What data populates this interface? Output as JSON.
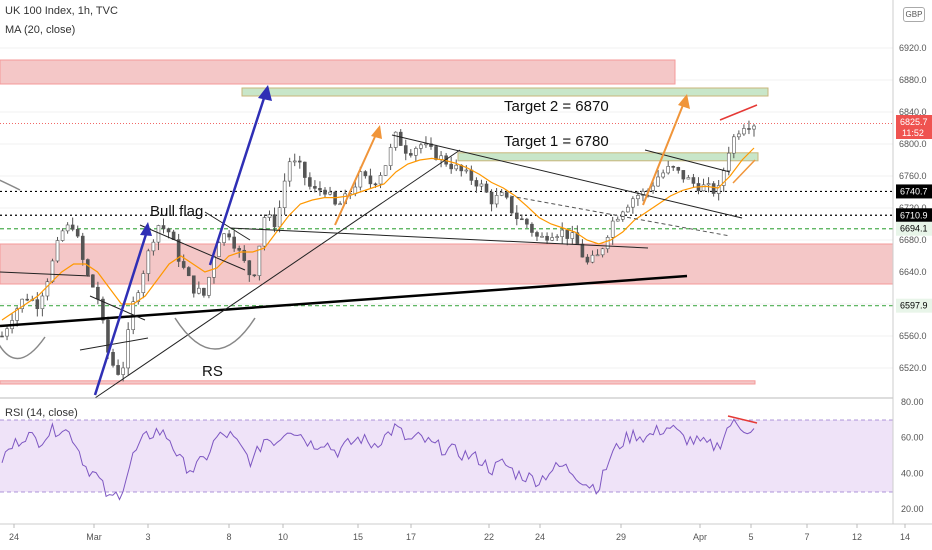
{
  "header": {
    "title": "UK 100 Index, 1h, TVC",
    "ma_label": "MA (20, close)",
    "rsi_label": "RSI (14, close)",
    "currency": "GBP",
    "last_price": "6825.7",
    "countdown": "11:52"
  },
  "annotations": {
    "bull_flag": "Bull flag",
    "rs": "RS",
    "target1": "Target 1 = 6780",
    "target2": "Target 2 = 6870"
  },
  "price_axis": {
    "ticks": [
      "6920.0",
      "6880.0",
      "6840.0",
      "6800.0",
      "6760.0",
      "6720.0",
      "6680.0",
      "6640.0",
      "6600.0",
      "6560.0",
      "6520.0"
    ],
    "levels": [
      {
        "label": "6740.7",
        "value": 6740.7,
        "style": "dotted",
        "color": "#000000"
      },
      {
        "label": "6710.9",
        "value": 6710.9,
        "style": "dotted",
        "color": "#000000"
      },
      {
        "label": "6694.1",
        "value": 6694.1,
        "style": "dashed",
        "color": "#4caf50"
      },
      {
        "label": "6597.9",
        "value": 6597.9,
        "style": "dashed",
        "color": "#4caf50"
      }
    ]
  },
  "rsi_axis": {
    "ticks": [
      "80.00",
      "60.00",
      "40.00",
      "20.00"
    ]
  },
  "time_axis": {
    "labels": [
      "24",
      "Mar",
      "3",
      "8",
      "10",
      "15",
      "17",
      "22",
      "24",
      "29",
      "Apr",
      "5",
      "7",
      "12",
      "14"
    ]
  },
  "chart_data": {
    "type": "candlestick",
    "symbol": "UK 100 Index",
    "interval": "1h",
    "y_range": [
      6500,
      6950
    ],
    "rsi_range": [
      15,
      82
    ],
    "close_path": [
      6560,
      6590,
      6610,
      6600,
      6640,
      6690,
      6700,
      6640,
      6610,
      6530,
      6510,
      6600,
      6650,
      6700,
      6690,
      6650,
      6620,
      6610,
      6680,
      6690,
      6660,
      6630,
      6710,
      6700,
      6780,
      6770,
      6740,
      6745,
      6720,
      6735,
      6760,
      6750,
      6770,
      6810,
      6790,
      6800,
      6790,
      6780,
      6770,
      6760,
      6750,
      6730,
      6735,
      6710,
      6700,
      6680,
      6690,
      6690,
      6680,
      6650,
      6660,
      6700,
      6720,
      6735,
      6740,
      6760,
      6770,
      6760,
      6750,
      6745,
      6740,
      6800,
      6825,
      6826
    ],
    "ma20_path": [
      6580,
      6590,
      6600,
      6610,
      6625,
      6640,
      6650,
      6650,
      6640,
      6620,
      6600,
      6600,
      6610,
      6630,
      6650,
      6660,
      6650,
      6640,
      6645,
      6660,
      6665,
      6665,
      6670,
      6690,
      6710,
      6725,
      6730,
      6733,
      6733,
      6735,
      6740,
      6745,
      6750,
      6765,
      6775,
      6780,
      6782,
      6780,
      6776,
      6770,
      6762,
      6752,
      6745,
      6735,
      6722,
      6708,
      6700,
      6695,
      6690,
      6680,
      6675,
      6680,
      6690,
      6705,
      6715,
      6725,
      6735,
      6742,
      6746,
      6747,
      6745,
      6760,
      6780,
      6795
    ],
    "rsi_path": [
      48,
      56,
      62,
      58,
      63,
      66,
      60,
      44,
      38,
      25,
      30,
      50,
      60,
      64,
      60,
      46,
      42,
      48,
      60,
      62,
      54,
      46,
      60,
      58,
      66,
      62,
      56,
      58,
      52,
      56,
      60,
      56,
      60,
      66,
      58,
      60,
      56,
      54,
      52,
      50,
      48,
      42,
      46,
      40,
      38,
      36,
      42,
      44,
      40,
      34,
      32,
      50,
      58,
      62,
      60,
      64,
      66,
      60,
      58,
      56,
      55,
      68,
      66,
      64
    ],
    "zones": [
      {
        "name": "resistance-zone-top",
        "from": 6875,
        "to": 6905,
        "color": "#f4c7c7"
      },
      {
        "name": "target2-zone",
        "from": 6860,
        "to": 6870,
        "color": "#c8e6c9"
      },
      {
        "name": "target1-zone",
        "from": 6779,
        "to": 6789,
        "color": "#c8e6c9"
      },
      {
        "name": "support-zone",
        "from": 6625,
        "to": 6675,
        "color": "#f4c7c7"
      },
      {
        "name": "bottom-zone",
        "from": 6500,
        "to": 6504,
        "color": "#f4c7c7"
      }
    ]
  },
  "colors": {
    "up": "#26a69a",
    "down": "#ef5350",
    "candle": "#555555",
    "ma": "#ff9800",
    "rsi": "#7e57c2",
    "arrow_blue": "#2f2fb5",
    "arrow_orange": "#f0953a",
    "last": "#ef5350"
  }
}
